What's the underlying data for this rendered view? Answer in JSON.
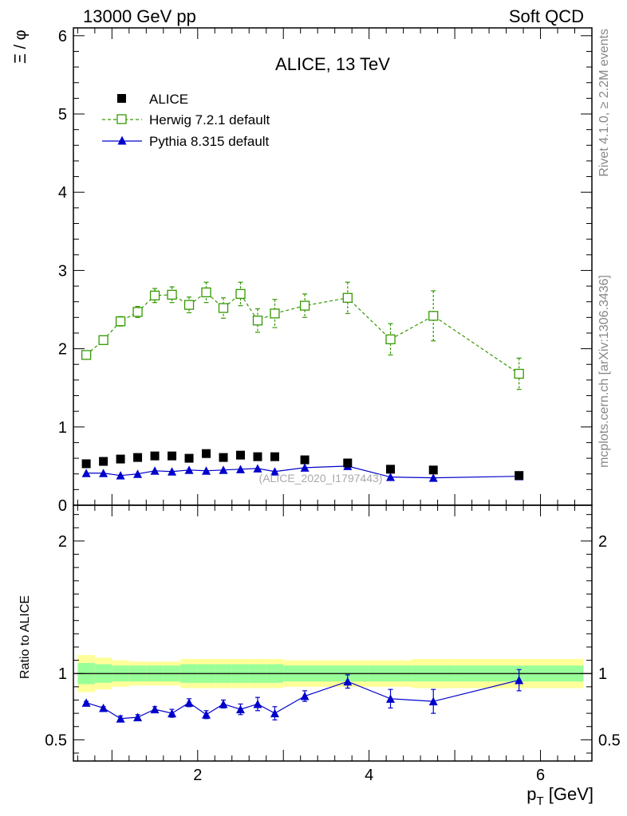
{
  "header": {
    "left": "13000 GeV pp",
    "right": "Soft QCD"
  },
  "side_labels": {
    "rivet": "Rivet 4.1.0, ≥ 2.2M events",
    "mcplots": "mcplots.cern.ch [arXiv:1306.3436]"
  },
  "chart_data": {
    "type": "scatter",
    "title": "ALICE, 13 TeV",
    "watermark": "(ALICE_2020_I1797443)",
    "xlabel": "p_T [GeV]",
    "ylabel": "Ξ / φ",
    "ratio_ylabel": "Ratio to ALICE",
    "xlim": [
      0.55,
      6.6
    ],
    "ylim": [
      0,
      6.1
    ],
    "ratio_ylim": [
      0.34,
      2.27
    ],
    "xticks": [
      2,
      4,
      6
    ],
    "yticks": [
      0,
      1,
      2,
      3,
      4,
      5,
      6
    ],
    "ratio_yticks": [
      0.5,
      1,
      2
    ],
    "x": [
      0.7,
      0.9,
      1.1,
      1.3,
      1.5,
      1.7,
      1.9,
      2.1,
      2.3,
      2.5,
      2.7,
      2.9,
      3.25,
      3.75,
      4.25,
      4.75,
      5.75
    ],
    "bin_edges": [
      0.6,
      0.8,
      1.0,
      1.2,
      1.4,
      1.6,
      1.8,
      2.0,
      2.2,
      2.4,
      2.6,
      2.8,
      3.0,
      3.5,
      4.0,
      4.5,
      5.0,
      6.5
    ],
    "series": [
      {
        "name": "ALICE",
        "style": "data",
        "color": "#000000",
        "values": [
          0.53,
          0.56,
          0.59,
          0.61,
          0.63,
          0.63,
          0.6,
          0.66,
          0.61,
          0.64,
          0.62,
          0.62,
          0.58,
          0.54,
          0.46,
          0.45,
          0.38
        ]
      },
      {
        "name": "Herwig 7.2.1 default",
        "style": "open-square-dashed",
        "color": "#339900",
        "values": [
          1.92,
          2.11,
          2.35,
          2.47,
          2.68,
          2.69,
          2.56,
          2.72,
          2.52,
          2.7,
          2.36,
          2.45,
          2.55,
          2.65,
          2.12,
          2.42,
          1.68
        ],
        "errors": [
          0.04,
          0.05,
          0.06,
          0.07,
          0.09,
          0.1,
          0.1,
          0.13,
          0.13,
          0.15,
          0.15,
          0.18,
          0.15,
          0.2,
          0.2,
          0.32,
          0.2
        ]
      },
      {
        "name": "Pythia 8.315 default",
        "style": "filled-triangle-solid",
        "color": "#0000cc",
        "values": [
          0.41,
          0.41,
          0.38,
          0.4,
          0.44,
          0.43,
          0.45,
          0.44,
          0.45,
          0.46,
          0.47,
          0.43,
          0.48,
          0.5,
          0.36,
          0.35,
          0.37
        ],
        "errors": [
          0.01,
          0.01,
          0.01,
          0.01,
          0.01,
          0.01,
          0.01,
          0.01,
          0.01,
          0.01,
          0.02,
          0.02,
          0.02,
          0.02,
          0.02,
          0.03,
          0.03
        ]
      }
    ],
    "ratio": {
      "reference": 1,
      "pythia_values": [
        0.78,
        0.74,
        0.66,
        0.67,
        0.73,
        0.7,
        0.78,
        0.69,
        0.77,
        0.73,
        0.77,
        0.7,
        0.83,
        0.94,
        0.81,
        0.79,
        0.95
      ],
      "pythia_errors": [
        0.01,
        0.01,
        0.02,
        0.02,
        0.02,
        0.03,
        0.03,
        0.03,
        0.03,
        0.04,
        0.05,
        0.05,
        0.04,
        0.05,
        0.07,
        0.09,
        0.08
      ],
      "band_inner": [
        0.08,
        0.07,
        0.06,
        0.06,
        0.06,
        0.06,
        0.07,
        0.07,
        0.07,
        0.07,
        0.07,
        0.07,
        0.06,
        0.06,
        0.06,
        0.06,
        0.06
      ],
      "band_outer": [
        0.14,
        0.12,
        0.1,
        0.09,
        0.09,
        0.09,
        0.11,
        0.11,
        0.11,
        0.11,
        0.11,
        0.11,
        0.1,
        0.1,
        0.1,
        0.11,
        0.11
      ]
    }
  }
}
